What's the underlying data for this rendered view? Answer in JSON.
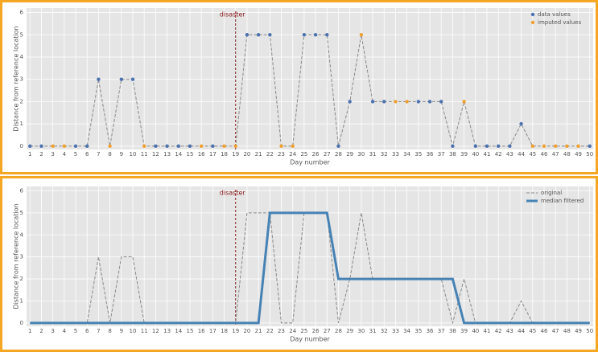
{
  "chart_data": [
    {
      "type": "scatter",
      "x": [
        1,
        2,
        3,
        4,
        5,
        6,
        7,
        8,
        9,
        10,
        11,
        12,
        13,
        14,
        15,
        16,
        17,
        18,
        19,
        20,
        21,
        22,
        23,
        24,
        25,
        26,
        27,
        28,
        29,
        30,
        31,
        32,
        33,
        34,
        35,
        36,
        37,
        38,
        39,
        40,
        41,
        42,
        43,
        44,
        45,
        46,
        47,
        48,
        49,
        50
      ],
      "series": [
        {
          "name": "data values",
          "color": "#4c72b0",
          "values": [
            0,
            0,
            null,
            null,
            0,
            0,
            3,
            null,
            3,
            3,
            null,
            0,
            0,
            0,
            0,
            null,
            0,
            null,
            null,
            5,
            5,
            5,
            null,
            null,
            5,
            5,
            5,
            0,
            2,
            null,
            2,
            2,
            null,
            null,
            2,
            2,
            2,
            0,
            null,
            0,
            0,
            0,
            0,
            1,
            null,
            null,
            null,
            null,
            null,
            0
          ]
        },
        {
          "name": "imputed values",
          "color": "#f0a030",
          "values": [
            null,
            null,
            0,
            0,
            null,
            null,
            null,
            0,
            null,
            null,
            0,
            null,
            null,
            null,
            null,
            0,
            null,
            0,
            0,
            null,
            null,
            null,
            0,
            0,
            null,
            null,
            null,
            null,
            null,
            5,
            null,
            null,
            2,
            2,
            null,
            null,
            null,
            null,
            2,
            null,
            null,
            null,
            null,
            null,
            0,
            0,
            0,
            0,
            0,
            null
          ]
        }
      ],
      "connector": {
        "color": "#8a8a8a",
        "dashed": true
      },
      "xlabel": "Day number",
      "ylabel": "Distance from reference location",
      "xlim": [
        0.7,
        50.3
      ],
      "ylim": [
        -0.15,
        6.2
      ],
      "xticks": [
        1,
        2,
        3,
        4,
        5,
        6,
        7,
        8,
        9,
        10,
        11,
        12,
        13,
        14,
        15,
        16,
        17,
        18,
        19,
        20,
        21,
        22,
        23,
        24,
        25,
        26,
        27,
        28,
        29,
        30,
        31,
        32,
        33,
        34,
        35,
        36,
        37,
        38,
        39,
        40,
        41,
        42,
        43,
        44,
        45,
        46,
        47,
        48,
        49,
        50
      ],
      "yticks": [
        0,
        1,
        2,
        3,
        4,
        5,
        6
      ],
      "vline": 19,
      "vline_label": "disaster",
      "vline_color": "#8b1a1a",
      "grid": true,
      "legend": "upper right"
    },
    {
      "type": "line",
      "x": [
        1,
        2,
        3,
        4,
        5,
        6,
        7,
        8,
        9,
        10,
        11,
        12,
        13,
        14,
        15,
        16,
        17,
        18,
        19,
        20,
        21,
        22,
        23,
        24,
        25,
        26,
        27,
        28,
        29,
        30,
        31,
        32,
        33,
        34,
        35,
        36,
        37,
        38,
        39,
        40,
        41,
        42,
        43,
        44,
        45,
        46,
        47,
        48,
        49,
        50
      ],
      "series": [
        {
          "name": "original",
          "color": "#8a8a8a",
          "dashed": true,
          "width": 1,
          "values": [
            0,
            0,
            0,
            0,
            0,
            0,
            3,
            0,
            3,
            3,
            0,
            0,
            0,
            0,
            0,
            0,
            0,
            0,
            0,
            5,
            5,
            5,
            0,
            0,
            5,
            5,
            5,
            0,
            2,
            5,
            2,
            2,
            2,
            2,
            2,
            2,
            2,
            0,
            2,
            0,
            0,
            0,
            0,
            1,
            0,
            0,
            0,
            0,
            0,
            0
          ]
        },
        {
          "name": "median filtered",
          "color": "#4682b4",
          "dashed": false,
          "width": 3,
          "values": [
            0,
            0,
            0,
            0,
            0,
            0,
            0,
            0,
            0,
            0,
            0,
            0,
            0,
            0,
            0,
            0,
            0,
            0,
            0,
            0,
            0,
            5,
            5,
            5,
            5,
            5,
            5,
            2,
            2,
            2,
            2,
            2,
            2,
            2,
            2,
            2,
            2,
            2,
            0,
            0,
            0,
            0,
            0,
            0,
            0,
            0,
            0,
            0,
            0,
            0
          ]
        }
      ],
      "xlabel": "Day number",
      "ylabel": "Distance from reference location",
      "xlim": [
        0.7,
        50.3
      ],
      "ylim": [
        -0.15,
        6.2
      ],
      "xticks": [
        1,
        2,
        3,
        4,
        5,
        6,
        7,
        8,
        9,
        10,
        11,
        12,
        13,
        14,
        15,
        16,
        17,
        18,
        19,
        20,
        21,
        22,
        23,
        24,
        25,
        26,
        27,
        28,
        29,
        30,
        31,
        32,
        33,
        34,
        35,
        36,
        37,
        38,
        39,
        40,
        41,
        42,
        43,
        44,
        45,
        46,
        47,
        48,
        49,
        50
      ],
      "yticks": [
        0,
        1,
        2,
        3,
        4,
        5,
        6
      ],
      "vline": 19,
      "vline_label": "disaster",
      "vline_color": "#8b1a1a",
      "grid": true,
      "legend": "upper right"
    }
  ]
}
